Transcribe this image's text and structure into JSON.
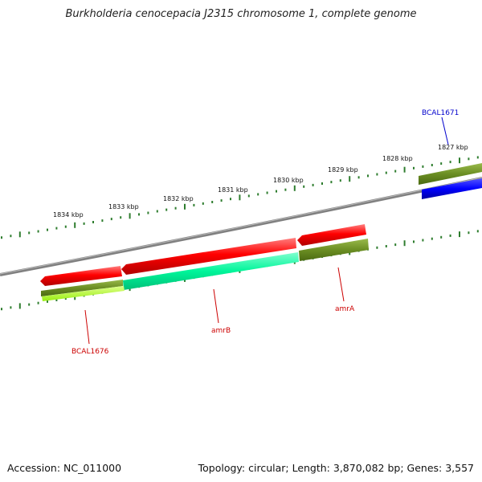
{
  "title": "Burkholderia cenocepacia J2315 chromosome 1, complete genome",
  "footer": {
    "accession": "Accession: NC_011000",
    "summary": "Topology: circular; Length: 3,870,082 bp; Genes: 3,557"
  },
  "ticks": [
    "1827 kbp",
    "1828 kbp",
    "1829 kbp",
    "1830 kbp",
    "1831 kbp",
    "1832 kbp",
    "1833 kbp",
    "1834 kbp"
  ],
  "genes": [
    {
      "name": "BCAL1671",
      "color": "#0000cc"
    },
    {
      "name": "amrA",
      "color": "#cc0000"
    },
    {
      "name": "amrB",
      "color": "#cc0000"
    },
    {
      "name": "BCAL1676",
      "color": "#cc0000"
    }
  ],
  "colors": {
    "cds": "#ff0000",
    "rna_dark_green": "#6b8e23",
    "teal": "#00ffa0",
    "lime": "#aaff22",
    "blue": "#0000ff",
    "backbone": "#808080",
    "tick": "#2e7d2e"
  }
}
